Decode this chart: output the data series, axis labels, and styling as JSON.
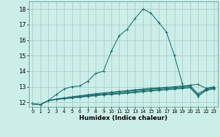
{
  "xlabel": "Humidex (Indice chaleur)",
  "bg_color": "#cceee8",
  "grid_color": "#aacccc",
  "line_color": "#1a7070",
  "ylim": [
    11.7,
    18.5
  ],
  "xlim": [
    -0.5,
    23.5
  ],
  "yticks": [
    12,
    13,
    14,
    15,
    16,
    17,
    18
  ],
  "xticks": [
    0,
    1,
    2,
    3,
    4,
    5,
    6,
    7,
    8,
    9,
    10,
    11,
    12,
    13,
    14,
    15,
    16,
    17,
    18,
    19,
    20,
    21,
    22,
    23
  ],
  "series": [
    [
      11.9,
      11.85,
      12.1,
      12.2,
      12.28,
      12.35,
      12.42,
      12.48,
      12.55,
      12.6,
      12.65,
      12.7,
      12.75,
      12.8,
      12.85,
      12.9,
      12.93,
      12.96,
      13.0,
      13.05,
      13.1,
      13.15,
      12.9,
      13.0
    ],
    [
      11.9,
      11.85,
      12.1,
      12.2,
      12.27,
      12.33,
      12.38,
      12.44,
      12.5,
      12.55,
      12.6,
      12.65,
      12.7,
      12.75,
      12.8,
      12.85,
      12.88,
      12.92,
      12.95,
      13.0,
      13.05,
      12.55,
      12.85,
      12.95
    ],
    [
      11.9,
      11.85,
      12.1,
      12.18,
      12.24,
      12.3,
      12.35,
      12.4,
      12.45,
      12.5,
      12.54,
      12.58,
      12.63,
      12.68,
      12.73,
      12.78,
      12.82,
      12.86,
      12.9,
      12.95,
      13.0,
      12.45,
      12.8,
      12.9
    ],
    [
      11.9,
      11.85,
      12.1,
      12.17,
      12.22,
      12.27,
      12.32,
      12.37,
      12.42,
      12.47,
      12.5,
      12.54,
      12.58,
      12.62,
      12.67,
      12.72,
      12.76,
      12.8,
      12.84,
      12.88,
      12.93,
      12.38,
      12.75,
      12.87
    ],
    [
      11.9,
      11.85,
      12.1,
      12.5,
      12.85,
      13.0,
      13.05,
      13.35,
      13.85,
      14.0,
      15.3,
      16.3,
      16.7,
      17.4,
      18.0,
      17.75,
      17.15,
      16.5,
      15.0,
      13.2,
      null,
      null,
      null,
      null
    ]
  ]
}
